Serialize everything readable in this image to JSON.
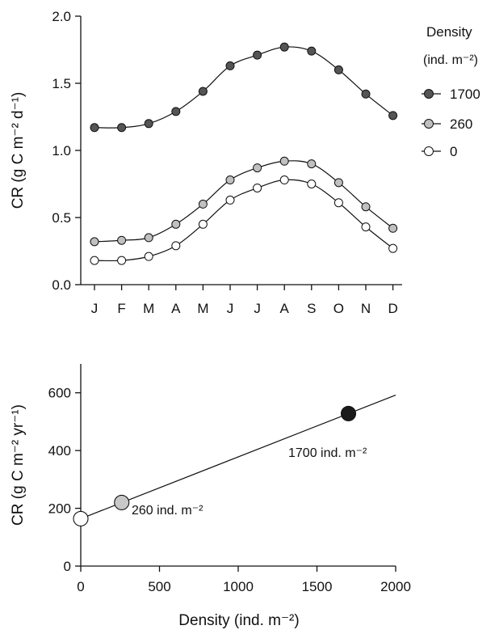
{
  "chart_data": [
    {
      "type": "line",
      "xlabel": "",
      "ylabel": "CR (g C m⁻² d⁻¹)",
      "ylim": [
        0.0,
        2.0
      ],
      "yticks": [
        "0.0",
        "0.5",
        "1.0",
        "1.5",
        "2.0"
      ],
      "categories": [
        "J",
        "F",
        "M",
        "A",
        "M",
        "J",
        "J",
        "A",
        "S",
        "O",
        "N",
        "D"
      ],
      "grid": false,
      "legend": {
        "title": "Density",
        "subtitle": "(ind. m⁻²)",
        "placement": "right"
      },
      "series": [
        {
          "name": "1700",
          "marker_fill": "#555555",
          "values": [
            1.17,
            1.17,
            1.2,
            1.29,
            1.44,
            1.63,
            1.71,
            1.77,
            1.74,
            1.6,
            1.42,
            1.26
          ]
        },
        {
          "name": "260",
          "marker_fill": "#c0c0c0",
          "values": [
            0.32,
            0.33,
            0.35,
            0.45,
            0.6,
            0.78,
            0.87,
            0.92,
            0.9,
            0.76,
            0.58,
            0.42
          ]
        },
        {
          "name": "0",
          "marker_fill": "#ffffff",
          "values": [
            0.18,
            0.18,
            0.21,
            0.29,
            0.45,
            0.63,
            0.72,
            0.78,
            0.75,
            0.61,
            0.43,
            0.27
          ]
        }
      ]
    },
    {
      "type": "scatter",
      "xlabel": "Density (ind. m⁻²)",
      "ylabel": "CR (g C m⁻² yr⁻¹)",
      "xlim": [
        0,
        2000
      ],
      "ylim": [
        0,
        700
      ],
      "xticks": [
        "0",
        "500",
        "1000",
        "1500",
        "2000"
      ],
      "yticks": [
        "0",
        "200",
        "400",
        "600"
      ],
      "grid": false,
      "points": [
        {
          "x": 0,
          "y": 164,
          "fill": "#ffffff"
        },
        {
          "x": 260,
          "y": 220,
          "fill": "#c8c8c8"
        },
        {
          "x": 1700,
          "y": 528,
          "fill": "#1a1a1a"
        }
      ],
      "fit_line": {
        "x": [
          0,
          2000
        ],
        "y": [
          164,
          592
        ]
      },
      "annotations": [
        {
          "text": "260 ind. m⁻²"
        },
        {
          "text": "1700 ind. m⁻²"
        }
      ]
    }
  ]
}
